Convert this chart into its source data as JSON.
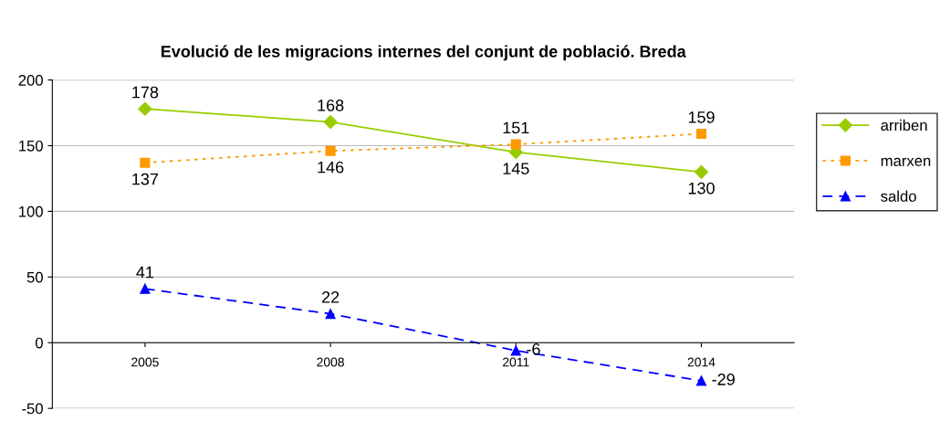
{
  "chart_data": {
    "type": "line",
    "title": "Evolució de les migracions internes del conjunt de població. Breda",
    "categories": [
      "2005",
      "2008",
      "2011",
      "2014"
    ],
    "series": [
      {
        "name": "arriben",
        "color": "#99cc00",
        "values": [
          178,
          168,
          145,
          130
        ],
        "marker": "diamond",
        "line_style": "solid"
      },
      {
        "name": "marxen",
        "color": "#ff9900",
        "values": [
          137,
          146,
          151,
          159
        ],
        "marker": "square",
        "line_style": "dotted"
      },
      {
        "name": "saldo",
        "color": "#0000ff",
        "values": [
          41,
          22,
          -6,
          -29
        ],
        "marker": "triangle",
        "line_style": "dashed"
      }
    ],
    "ylim": [
      -50,
      200
    ],
    "yticks": [
      -50,
      0,
      50,
      100,
      150,
      200
    ],
    "grid": "y",
    "legend": "right",
    "data_labels": true
  }
}
